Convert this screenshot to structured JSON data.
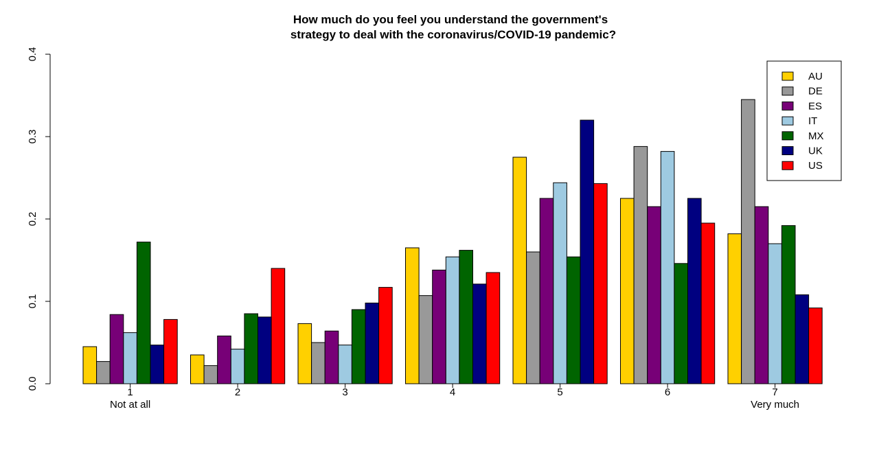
{
  "chart_data": {
    "type": "bar",
    "title_lines": [
      "How much do you feel you understand the government's",
      "strategy to deal with the coronavirus/COVID-19 pandemic?"
    ],
    "xlabel": "",
    "ylabel": "",
    "categories": [
      "1",
      "2",
      "3",
      "4",
      "5",
      "6",
      "7"
    ],
    "category_sublabels": [
      "Not at all",
      "",
      "",
      "",
      "",
      "",
      "Very much"
    ],
    "ylim": [
      0,
      0.4
    ],
    "yticks": [
      "0.0",
      "0.1",
      "0.2",
      "0.3",
      "0.4"
    ],
    "ytick_values": [
      0,
      0.1,
      0.2,
      0.3,
      0.4
    ],
    "grid": false,
    "legend_position": "top-right",
    "series": [
      {
        "name": "AU",
        "color": "#FFD000",
        "values": [
          0.045,
          0.035,
          0.073,
          0.165,
          0.275,
          0.225,
          0.182
        ]
      },
      {
        "name": "DE",
        "color": "#999999",
        "values": [
          0.027,
          0.022,
          0.05,
          0.107,
          0.16,
          0.288,
          0.345
        ]
      },
      {
        "name": "ES",
        "color": "#770077",
        "values": [
          0.084,
          0.058,
          0.064,
          0.138,
          0.225,
          0.215,
          0.215
        ]
      },
      {
        "name": "IT",
        "color": "#9ECAE1",
        "values": [
          0.062,
          0.042,
          0.047,
          0.154,
          0.244,
          0.282,
          0.17
        ]
      },
      {
        "name": "MX",
        "color": "#006400",
        "values": [
          0.172,
          0.085,
          0.09,
          0.162,
          0.154,
          0.146,
          0.192
        ]
      },
      {
        "name": "UK",
        "color": "#000080",
        "values": [
          0.047,
          0.081,
          0.098,
          0.121,
          0.32,
          0.225,
          0.108
        ]
      },
      {
        "name": "US",
        "color": "#FF0000",
        "values": [
          0.078,
          0.14,
          0.117,
          0.135,
          0.243,
          0.195,
          0.092
        ]
      }
    ]
  }
}
